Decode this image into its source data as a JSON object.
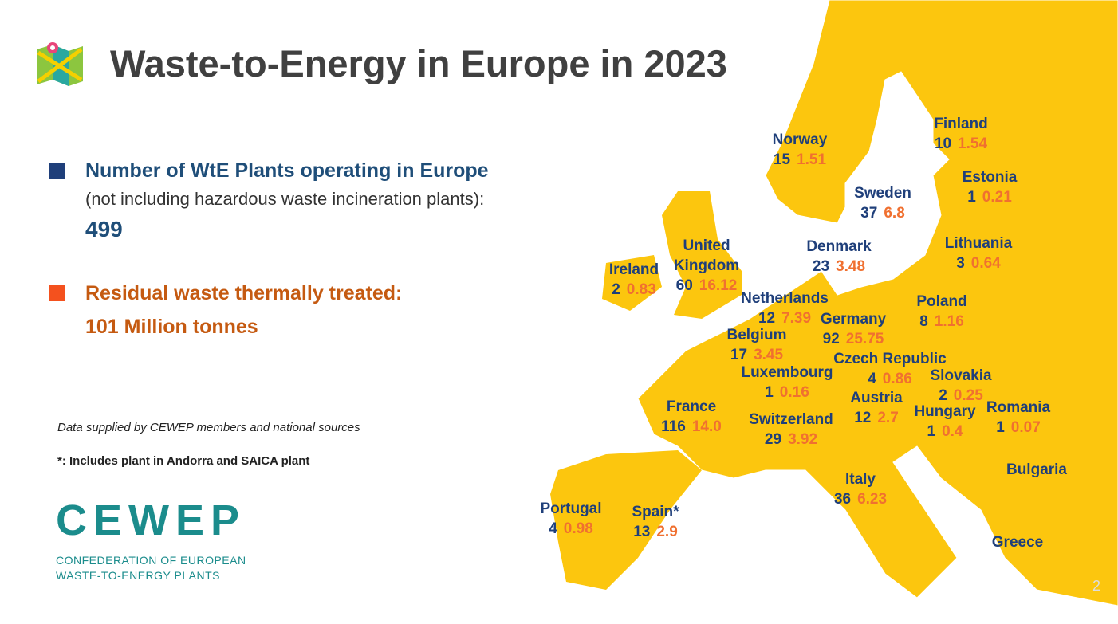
{
  "header": {
    "title": "Waste-to-Energy in Europe in 2023"
  },
  "legend": [
    {
      "label": "Number of WtE Plants operating in Europe",
      "note": "(not including hazardous waste incineration plants):",
      "value": 499
    },
    {
      "label": "Residual waste thermally treated:",
      "value": "101 Million tonnes"
    }
  ],
  "notes": [
    "Data supplied by CEWEP members and national sources",
    "*: Includes plant in Andorra and SAICA plant"
  ],
  "logo": {
    "name": "CEWEP",
    "lines": [
      "CONFEDERATION OF EUROPEAN",
      "WASTE-TO-ENERGY PLANTS"
    ]
  },
  "countries": [
    {
      "name": "Norway",
      "plants": 15,
      "tonnes": 1.51
    },
    {
      "name": "Finland",
      "plants": 10,
      "tonnes": 1.54
    },
    {
      "name": "Estonia",
      "plants": 1,
      "tonnes": 0.21
    },
    {
      "name": "Sweden",
      "plants": 37,
      "tonnes": 6.8
    },
    {
      "name": "Denmark",
      "plants": 23,
      "tonnes": 3.48
    },
    {
      "name": "Lithuania",
      "plants": 3,
      "tonnes": 0.64
    },
    {
      "name": "Ireland",
      "plants": 2,
      "tonnes": 0.83
    },
    {
      "name": "United Kingdom",
      "plants": 60,
      "tonnes": 16.12
    },
    {
      "name": "Netherlands",
      "plants": 12,
      "tonnes": 7.39
    },
    {
      "name": "Germany",
      "plants": 92,
      "tonnes": 25.75
    },
    {
      "name": "Poland",
      "plants": 8,
      "tonnes": 1.16
    },
    {
      "name": "Belgium",
      "plants": 17,
      "tonnes": 3.45
    },
    {
      "name": "Czech Republic",
      "plants": 4,
      "tonnes": 0.86
    },
    {
      "name": "Luxembourg",
      "plants": 1,
      "tonnes": 0.16
    },
    {
      "name": "Slovakia",
      "plants": 2,
      "tonnes": 0.25
    },
    {
      "name": "France",
      "plants": 116,
      "tonnes": "14.0"
    },
    {
      "name": "Austria",
      "plants": 12,
      "tonnes": 2.7
    },
    {
      "name": "Switzerland",
      "plants": 29,
      "tonnes": 3.92
    },
    {
      "name": "Hungary",
      "plants": 1,
      "tonnes": 0.4
    },
    {
      "name": "Romania",
      "plants": 1,
      "tonnes": 0.07
    },
    {
      "name": "Bulgaria"
    },
    {
      "name": "Italy",
      "plants": 36,
      "tonnes": 6.23
    },
    {
      "name": "Portugal",
      "plants": 4,
      "tonnes": 0.98
    },
    {
      "name": "Spain*",
      "plants": 13,
      "tonnes": 2.9
    },
    {
      "name": "Greece"
    }
  ],
  "page_number": "2"
}
